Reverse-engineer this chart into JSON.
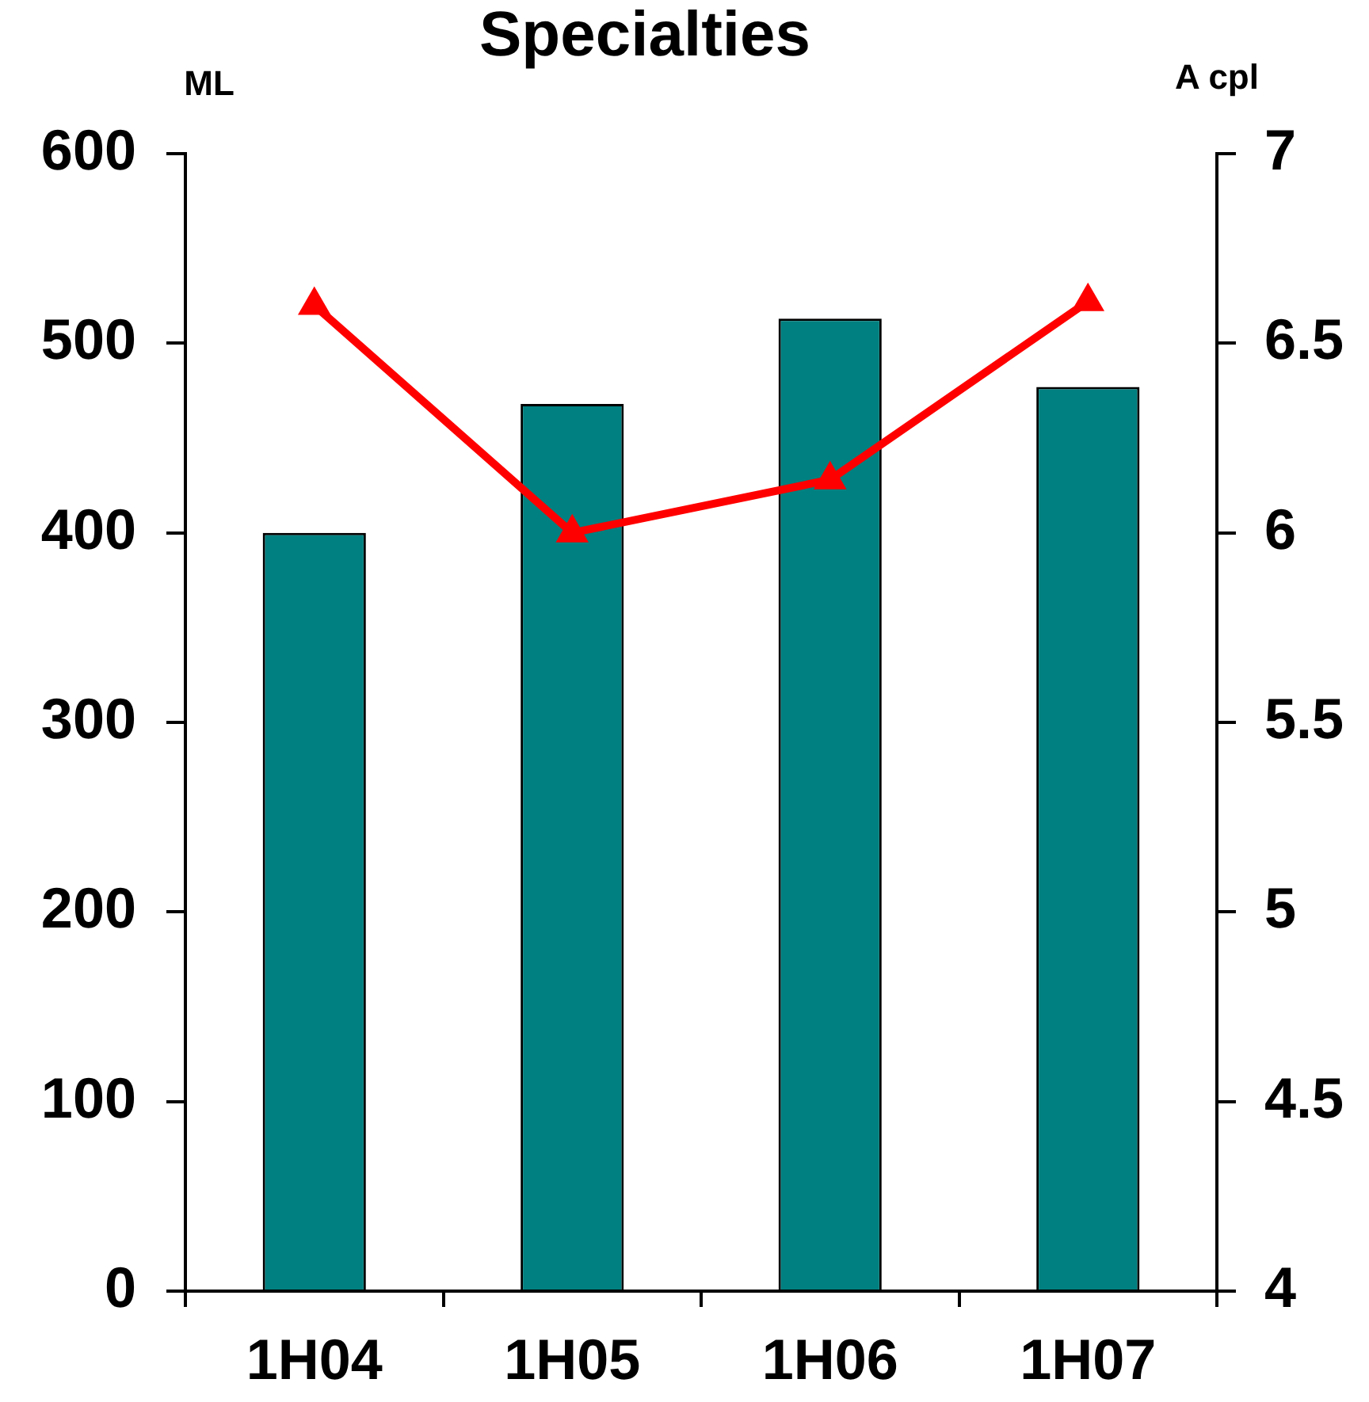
{
  "chart_data": {
    "type": "bar",
    "title": "Specialties",
    "ylabel": "ML",
    "y2label": "A cpl",
    "categories": [
      "1H04",
      "1H05",
      "1H06",
      "1H07"
    ],
    "series": [
      {
        "color": "#008080",
        "values": [
          400,
          468,
          513,
          477
        ]
      },
      {
        "type": "line",
        "axis": "y2",
        "color": "#ff0000",
        "values": [
          6.6,
          6.0,
          6.14,
          6.61
        ],
        "marker": "triangle",
        "line_style": "solid"
      }
    ],
    "ylim": [
      0,
      600
    ],
    "yticks": [
      0,
      100,
      200,
      300,
      400,
      500,
      600
    ],
    "y2lim": [
      4,
      7
    ],
    "y2ticks": [
      4,
      4.5,
      5,
      5.5,
      6,
      6.5,
      7
    ],
    "grid": false,
    "legend": false
  }
}
